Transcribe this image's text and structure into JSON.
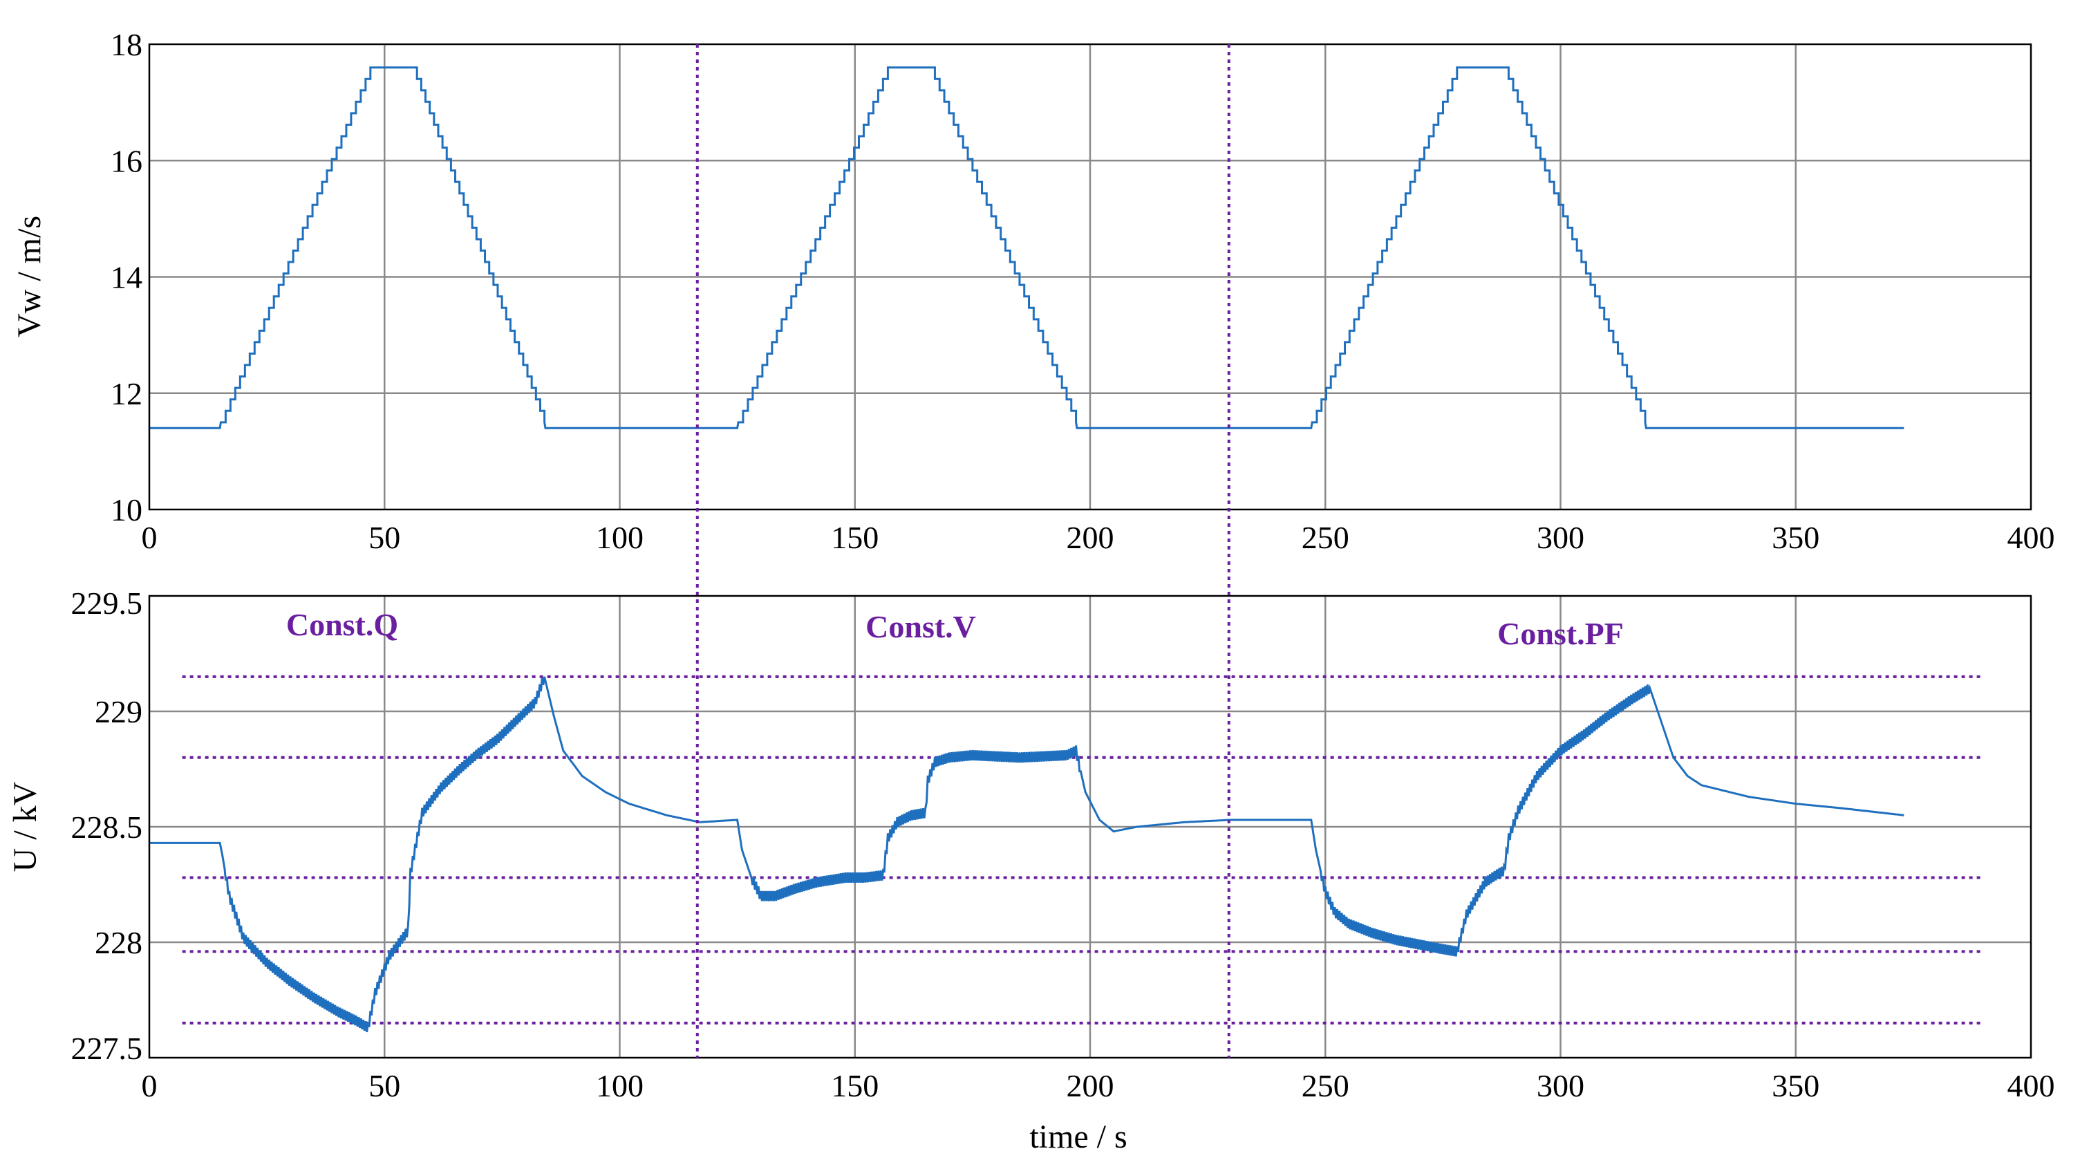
{
  "chart_data": [
    {
      "type": "line",
      "ylabel": "Vw / m/s",
      "xlim": [
        0,
        400
      ],
      "ylim": [
        10,
        18
      ],
      "xticks": [
        0,
        50,
        100,
        150,
        200,
        250,
        300,
        350,
        400
      ],
      "yticks": [
        10,
        12,
        14,
        16,
        18
      ],
      "grid": true,
      "colors": {
        "line": "#1f6fbf",
        "grid": "#8a8a8a",
        "dotted": "#6a1fa0"
      },
      "dividers_x": [
        116.5,
        229.5
      ],
      "series": [
        {
          "x": [
            0,
            15,
            15.2,
            47,
            56,
            84,
            84.2,
            125,
            125.2,
            157,
            166,
            197,
            197.2,
            247,
            247.2,
            278,
            288,
            318,
            318.2,
            373
          ],
          "y": [
            11.4,
            11.4,
            11.5,
            17.6,
            17.6,
            11.5,
            11.4,
            11.4,
            11.5,
            17.6,
            17.6,
            11.5,
            11.4,
            11.4,
            11.5,
            17.6,
            17.6,
            11.5,
            11.4,
            11.4
          ]
        }
      ]
    },
    {
      "type": "line",
      "xlabel": "time / s",
      "ylabel": "U / kV",
      "xlim": [
        0,
        400
      ],
      "ylim": [
        227.5,
        229.5
      ],
      "xticks": [
        0,
        50,
        100,
        150,
        200,
        250,
        300,
        350,
        400
      ],
      "yticks": [
        227.5,
        228,
        228.5,
        229,
        229.5
      ],
      "ytick_labels": [
        "227.5",
        "228",
        "228.5",
        "229",
        "229.5"
      ],
      "grid": true,
      "dividers_x": [
        116.5,
        229.5
      ],
      "hlines": [
        229.15,
        228.8,
        228.28,
        227.96,
        227.65
      ],
      "annotations": [
        {
          "text": "Const.Q",
          "x": 41,
          "y": 229.33
        },
        {
          "text": "Const.V",
          "x": 164,
          "y": 229.32
        },
        {
          "text": "Const.PF",
          "x": 300,
          "y": 229.29
        }
      ],
      "series": [
        {
          "x": [
            0,
            15,
            15.5,
            17,
            20,
            25,
            30,
            35,
            40,
            44,
            46.5,
            48,
            51,
            55,
            55.5,
            58,
            62,
            66,
            70,
            74,
            78,
            82,
            84,
            86,
            88,
            92,
            97,
            102,
            110,
            117,
            125,
            126,
            128,
            130,
            133,
            137,
            142,
            148,
            152,
            156,
            157,
            159,
            162,
            165,
            165.5,
            167,
            170,
            175,
            185,
            195,
            197,
            199,
            202,
            205,
            210,
            220,
            230,
            247,
            248,
            250,
            252,
            255,
            260,
            265,
            270,
            275,
            278,
            280,
            284,
            287,
            288,
            289,
            291,
            295,
            300,
            305,
            310,
            315,
            319,
            321,
            324,
            327,
            330,
            340,
            350,
            360,
            373
          ],
          "y": [
            228.43,
            228.43,
            228.38,
            228.2,
            228.02,
            227.91,
            227.83,
            227.76,
            227.7,
            227.66,
            227.63,
            227.78,
            227.94,
            228.05,
            228.3,
            228.56,
            228.67,
            228.75,
            228.82,
            228.88,
            228.96,
            229.04,
            229.15,
            228.98,
            228.83,
            228.72,
            228.65,
            228.6,
            228.55,
            228.52,
            228.53,
            228.4,
            228.28,
            228.2,
            228.2,
            228.23,
            228.26,
            228.28,
            228.28,
            228.29,
            228.45,
            228.52,
            228.55,
            228.56,
            228.7,
            228.78,
            228.8,
            228.81,
            228.8,
            228.81,
            228.83,
            228.65,
            228.53,
            228.48,
            228.5,
            228.52,
            228.53,
            228.53,
            228.4,
            228.22,
            228.13,
            228.08,
            228.04,
            228.01,
            227.99,
            227.97,
            227.96,
            228.12,
            228.26,
            228.3,
            228.31,
            228.45,
            228.57,
            228.72,
            228.83,
            228.9,
            228.98,
            229.05,
            229.1,
            228.98,
            228.8,
            228.72,
            228.68,
            228.63,
            228.6,
            228.58,
            228.55
          ]
        }
      ]
    }
  ]
}
